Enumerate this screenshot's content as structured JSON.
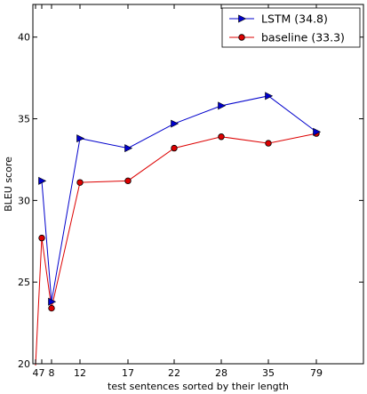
{
  "chart_data": {
    "type": "line",
    "title": "",
    "xlabel": "test sentences sorted by their length",
    "ylabel": "BLEU score",
    "categories": [
      "4",
      "7",
      "8",
      "12",
      "17",
      "22",
      "28",
      "35",
      "79"
    ],
    "ylim": [
      20,
      42
    ],
    "yticks": [
      20,
      25,
      30,
      35,
      40
    ],
    "grid": false,
    "legend_position": "top-right",
    "series": [
      {
        "name": "LSTM  (34.8)",
        "color": "#0000cc",
        "marker": "right-triangle",
        "values": [
          null,
          31.2,
          23.8,
          33.8,
          33.2,
          34.7,
          35.8,
          36.4,
          34.2
        ]
      },
      {
        "name": "baseline (33.3)",
        "color": "#dd0000",
        "marker": "circle",
        "values": [
          19.8,
          27.7,
          23.4,
          31.1,
          31.2,
          33.2,
          33.9,
          33.5,
          34.1
        ]
      }
    ]
  }
}
